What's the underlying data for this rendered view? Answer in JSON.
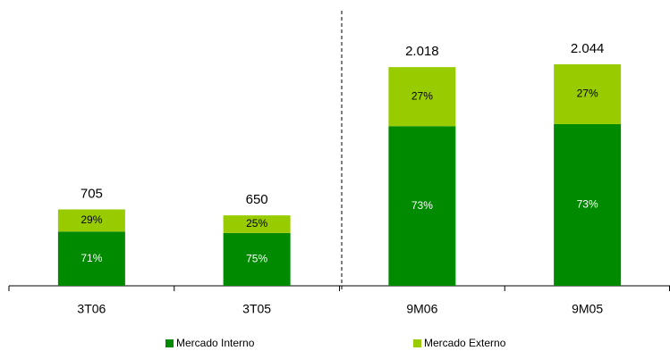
{
  "chart_data": {
    "type": "stacked_bar_percent",
    "categories": [
      "3T06",
      "3T05",
      "9M06",
      "9M05"
    ],
    "totals": [
      705,
      650,
      2018,
      2044
    ],
    "total_labels": [
      "705",
      "650",
      "2.018",
      "2.044"
    ],
    "series": [
      {
        "name": "Mercado Interno",
        "color": "#008a00",
        "text_color": "#ffffff",
        "values": [
          71,
          75,
          73,
          73
        ],
        "value_labels": [
          "71%",
          "75%",
          "73%",
          "73%"
        ]
      },
      {
        "name": "Mercado Externo",
        "color": "#99cc00",
        "text_color": "#000000",
        "values": [
          29,
          25,
          27,
          27
        ],
        "value_labels": [
          "29%",
          "25%",
          "27%",
          "27%"
        ]
      }
    ]
  }
}
